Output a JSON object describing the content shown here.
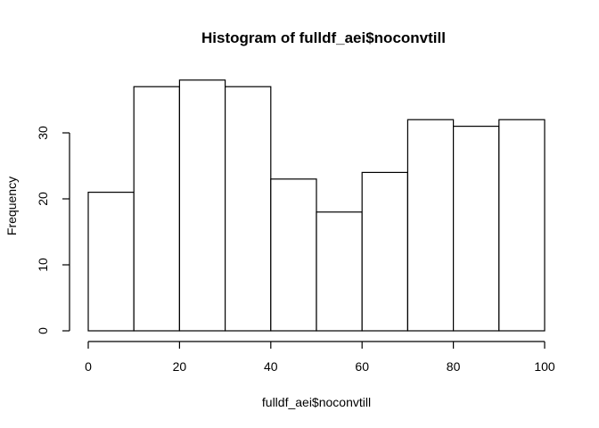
{
  "chart_data": {
    "type": "histogram",
    "title": "Histogram of fulldf_aei$noconvtill",
    "xlabel": "fulldf_aei$noconvtill",
    "ylabel": "Frequency",
    "bin_edges": [
      0,
      10,
      20,
      30,
      40,
      50,
      60,
      70,
      80,
      90,
      100
    ],
    "values": [
      21,
      37,
      38,
      37,
      23,
      18,
      24,
      32,
      31,
      32
    ],
    "xlim": [
      0,
      100
    ],
    "ylim": [
      0,
      38
    ],
    "x_ticks": [
      0,
      20,
      40,
      60,
      80,
      100
    ],
    "y_ticks": [
      0,
      10,
      20,
      30
    ],
    "grid": false,
    "bar_fill": "#ffffff",
    "bar_stroke": "#000000"
  }
}
